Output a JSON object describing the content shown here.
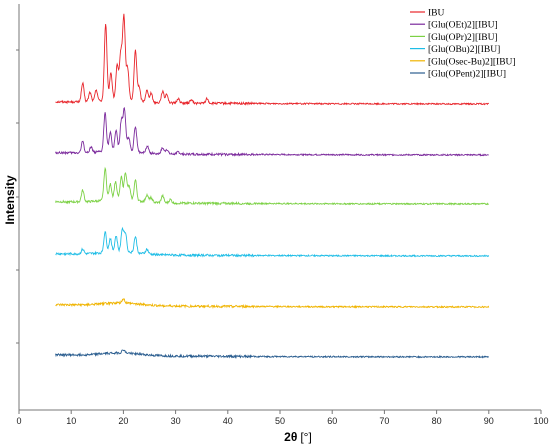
{
  "chart_data": {
    "type": "line",
    "title": "",
    "xlabel_main": "2θ",
    "xlabel_unit": "[°]",
    "ylabel": "Intensity",
    "xlim": [
      0,
      100
    ],
    "x_ticks": [
      "0",
      "10",
      "20",
      "30",
      "40",
      "50",
      "60",
      "70",
      "80",
      "90",
      "100"
    ],
    "x_tick_values": [
      0,
      10,
      20,
      30,
      40,
      50,
      60,
      70,
      80,
      90,
      100
    ],
    "y_ticks_labeled": false,
    "x_range_data": [
      7,
      90
    ],
    "legend_position": "top-right",
    "series": [
      {
        "name": "IBU",
        "color": "#e8242a",
        "baseline": 0.0,
        "offset_level": 5,
        "peaks": [
          [
            12.2,
            0.08
          ],
          [
            13.6,
            0.04
          ],
          [
            14.8,
            0.05
          ],
          [
            16.6,
            0.33
          ],
          [
            17.6,
            0.12
          ],
          [
            18.8,
            0.15
          ],
          [
            19.5,
            0.2
          ],
          [
            20.1,
            0.36
          ],
          [
            20.8,
            0.14
          ],
          [
            22.3,
            0.22
          ],
          [
            23.0,
            0.06
          ],
          [
            24.5,
            0.05
          ],
          [
            25.3,
            0.04
          ],
          [
            27.5,
            0.05
          ],
          [
            28.3,
            0.04
          ],
          [
            30.5,
            0.02
          ],
          [
            33.0,
            0.015
          ],
          [
            36.0,
            0.02
          ]
        ]
      },
      {
        "name": "[Glu(OEt)2][IBU]",
        "color": "#7b2a9c",
        "offset_level": 4,
        "peaks": [
          [
            12.2,
            0.05
          ],
          [
            13.8,
            0.025
          ],
          [
            16.5,
            0.17
          ],
          [
            17.5,
            0.08
          ],
          [
            18.6,
            0.09
          ],
          [
            19.6,
            0.13
          ],
          [
            20.2,
            0.18
          ],
          [
            21.0,
            0.06
          ],
          [
            22.3,
            0.11
          ],
          [
            24.6,
            0.03
          ],
          [
            27.5,
            0.025
          ],
          [
            28.3,
            0.02
          ],
          [
            30.5,
            0.01
          ]
        ]
      },
      {
        "name": "[Glu(OPr)2][IBU]",
        "color": "#7cd145",
        "offset_level": 3,
        "peaks": [
          [
            12.2,
            0.05
          ],
          [
            16.5,
            0.14
          ],
          [
            17.5,
            0.07
          ],
          [
            18.5,
            0.08
          ],
          [
            19.6,
            0.1
          ],
          [
            20.4,
            0.12
          ],
          [
            21.1,
            0.06
          ],
          [
            22.3,
            0.09
          ],
          [
            24.5,
            0.03
          ],
          [
            25.3,
            0.02
          ],
          [
            27.5,
            0.03
          ],
          [
            29.0,
            0.015
          ]
        ]
      },
      {
        "name": "[Glu(OBu)2][IBU]",
        "color": "#1ebde6",
        "offset_level": 2,
        "peaks": [
          [
            12.2,
            0.02
          ],
          [
            16.5,
            0.09
          ],
          [
            17.5,
            0.06
          ],
          [
            18.6,
            0.07
          ],
          [
            19.8,
            0.1
          ],
          [
            20.4,
            0.08
          ],
          [
            22.3,
            0.07
          ],
          [
            24.5,
            0.02
          ]
        ]
      },
      {
        "name": "[Glu(Osec-Bu)2][IBU]",
        "color": "#f0b400",
        "offset_level": 1,
        "peaks": [
          [
            20.0,
            0.018
          ]
        ]
      },
      {
        "name": "[Glu(OPent)2][IBU]",
        "color": "#2a5d8f",
        "offset_level": 0,
        "peaks": [
          [
            20.0,
            0.014
          ]
        ]
      }
    ]
  }
}
